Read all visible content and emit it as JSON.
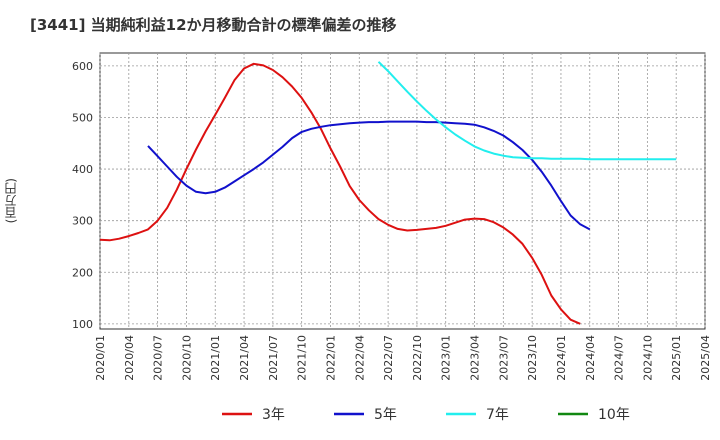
{
  "chart_data": {
    "type": "line",
    "title": "[3441]  当期純利益12か月移動合計の標準偏差の推移",
    "ylabel": "(百万円)",
    "xlabel": "",
    "ylim": [
      90,
      625
    ],
    "yticks": [
      100,
      200,
      300,
      400,
      500,
      600
    ],
    "grid": true,
    "legend_position": "bottom",
    "x": [
      "2020/01",
      "2020/04",
      "2020/07",
      "2020/10",
      "2021/01",
      "2021/04",
      "2021/07",
      "2021/10",
      "2022/01",
      "2022/04",
      "2022/07",
      "2022/10",
      "2023/01",
      "2023/04",
      "2023/07",
      "2023/10",
      "2024/01",
      "2024/04",
      "2024/07",
      "2024/10",
      "2025/01",
      "2025/04"
    ],
    "series": [
      {
        "name": "3年",
        "color": "#dd1111",
        "points": [
          [
            0,
            263
          ],
          [
            1,
            262
          ],
          [
            2,
            265
          ],
          [
            3,
            270
          ],
          [
            4,
            276
          ],
          [
            5,
            283
          ],
          [
            6,
            300
          ],
          [
            7,
            325
          ],
          [
            8,
            360
          ],
          [
            9,
            400
          ],
          [
            10,
            438
          ],
          [
            11,
            473
          ],
          [
            12,
            505
          ],
          [
            13,
            538
          ],
          [
            14,
            572
          ],
          [
            15,
            595
          ],
          [
            16,
            604
          ],
          [
            17,
            601
          ],
          [
            18,
            592
          ],
          [
            19,
            578
          ],
          [
            20,
            560
          ],
          [
            21,
            538
          ],
          [
            22,
            510
          ],
          [
            23,
            478
          ],
          [
            24,
            440
          ],
          [
            25,
            405
          ],
          [
            26,
            367
          ],
          [
            27,
            340
          ],
          [
            28,
            320
          ],
          [
            29,
            303
          ],
          [
            30,
            292
          ],
          [
            31,
            284
          ],
          [
            32,
            281
          ],
          [
            33,
            282
          ],
          [
            34,
            284
          ],
          [
            35,
            286
          ],
          [
            36,
            290
          ],
          [
            37,
            296
          ],
          [
            38,
            302
          ],
          [
            39,
            304
          ],
          [
            40,
            303
          ],
          [
            41,
            297
          ],
          [
            42,
            287
          ],
          [
            43,
            273
          ],
          [
            44,
            255
          ],
          [
            45,
            228
          ],
          [
            46,
            195
          ],
          [
            47,
            155
          ],
          [
            48,
            128
          ],
          [
            49,
            108
          ],
          [
            50,
            100
          ]
        ]
      },
      {
        "name": "5年",
        "color": "#1111cc",
        "points": [
          [
            5,
            445
          ],
          [
            6,
            425
          ],
          [
            7,
            405
          ],
          [
            8,
            385
          ],
          [
            9,
            368
          ],
          [
            10,
            356
          ],
          [
            11,
            353
          ],
          [
            12,
            356
          ],
          [
            13,
            364
          ],
          [
            14,
            376
          ],
          [
            15,
            388
          ],
          [
            16,
            400
          ],
          [
            17,
            413
          ],
          [
            18,
            428
          ],
          [
            19,
            443
          ],
          [
            20,
            460
          ],
          [
            21,
            472
          ],
          [
            22,
            478
          ],
          [
            23,
            482
          ],
          [
            24,
            485
          ],
          [
            25,
            487
          ],
          [
            26,
            489
          ],
          [
            27,
            490
          ],
          [
            28,
            491
          ],
          [
            29,
            491
          ],
          [
            30,
            492
          ],
          [
            31,
            492
          ],
          [
            32,
            492
          ],
          [
            33,
            492
          ],
          [
            34,
            491
          ],
          [
            35,
            491
          ],
          [
            36,
            490
          ],
          [
            37,
            489
          ],
          [
            38,
            488
          ],
          [
            39,
            486
          ],
          [
            40,
            481
          ],
          [
            41,
            474
          ],
          [
            42,
            465
          ],
          [
            43,
            452
          ],
          [
            44,
            437
          ],
          [
            45,
            418
          ],
          [
            46,
            395
          ],
          [
            47,
            368
          ],
          [
            48,
            338
          ],
          [
            49,
            310
          ],
          [
            50,
            293
          ],
          [
            51,
            283
          ]
        ]
      },
      {
        "name": "7年",
        "color": "#22eeee",
        "points": [
          [
            29,
            608
          ],
          [
            30,
            590
          ],
          [
            31,
            570
          ],
          [
            32,
            550
          ],
          [
            33,
            531
          ],
          [
            34,
            513
          ],
          [
            35,
            496
          ],
          [
            36,
            481
          ],
          [
            37,
            467
          ],
          [
            38,
            455
          ],
          [
            39,
            444
          ],
          [
            40,
            436
          ],
          [
            41,
            430
          ],
          [
            42,
            426
          ],
          [
            43,
            423
          ],
          [
            44,
            422
          ],
          [
            45,
            421
          ],
          [
            46,
            421
          ],
          [
            47,
            420
          ],
          [
            48,
            420
          ],
          [
            49,
            420
          ],
          [
            50,
            420
          ],
          [
            51,
            419
          ],
          [
            52,
            419
          ],
          [
            53,
            419
          ],
          [
            54,
            419
          ],
          [
            55,
            419
          ],
          [
            56,
            419
          ],
          [
            57,
            419
          ],
          [
            58,
            419
          ],
          [
            59,
            419
          ],
          [
            60,
            419
          ]
        ]
      },
      {
        "name": "10年",
        "color": "#118811",
        "points": []
      }
    ]
  }
}
